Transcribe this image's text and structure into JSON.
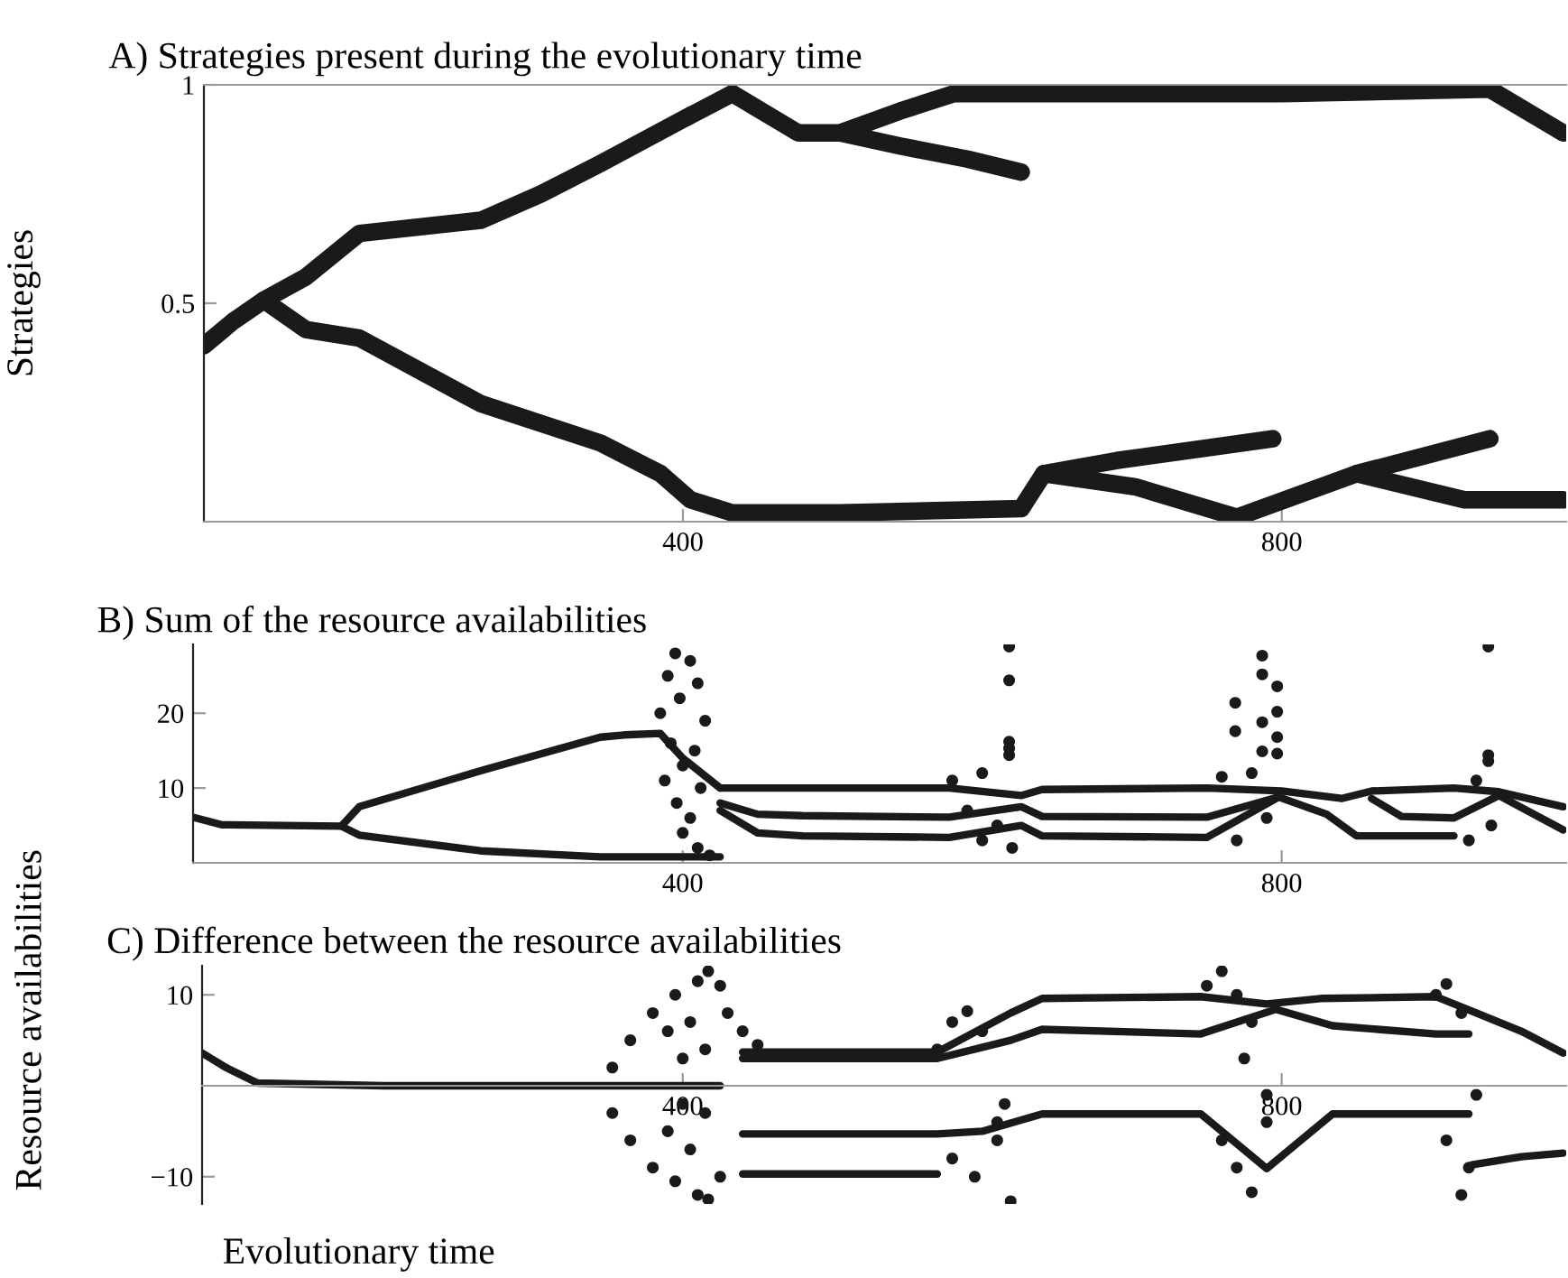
{
  "chart_data": [
    {
      "type": "line",
      "title": "A) Strategies present during the evolutionary time",
      "ylabel": "Strategies",
      "xlim": [
        80,
        990
      ],
      "ylim": [
        0,
        1
      ],
      "xticks": [
        400,
        800
      ],
      "yticks": [
        0.5,
        1
      ],
      "grid": false,
      "series": [
        {
          "color": "#1a1a1a",
          "x": [
            80,
            100,
            120,
            148,
            184,
            265,
            305,
            345,
            405,
            433,
            477,
            505,
            545,
            581,
            641,
            800,
            939,
            988
          ],
          "values": [
            0.403,
            0.46,
            0.507,
            0.56,
            0.66,
            0.69,
            0.75,
            0.82,
            0.93,
            0.98,
            0.89,
            0.89,
            0.94,
            0.98,
            0.98,
            0.98,
            0.99,
            0.89
          ]
        },
        {
          "color": "#1a1a1a",
          "x": [
            505,
            545,
            590,
            626
          ],
          "values": [
            0.89,
            0.86,
            0.83,
            0.8
          ]
        },
        {
          "color": "#1a1a1a",
          "x": [
            120,
            148,
            184,
            265,
            345,
            385,
            405,
            433,
            505,
            626,
            641,
            690,
            794
          ],
          "values": [
            0.507,
            0.44,
            0.42,
            0.27,
            0.18,
            0.11,
            0.05,
            0.02,
            0.02,
            0.03,
            0.11,
            0.14,
            0.19
          ]
        },
        {
          "color": "#1a1a1a",
          "x": [
            641,
            702,
            770,
            850,
            939
          ],
          "values": [
            0.11,
            0.08,
            0.01,
            0.11,
            0.19
          ]
        },
        {
          "color": "#1a1a1a",
          "x": [
            850,
            922,
            988
          ],
          "values": [
            0.11,
            0.05,
            0.05
          ]
        }
      ]
    },
    {
      "type": "line",
      "title": "B) Sum of the resource availabilities",
      "ylabel": "Resource availabilities",
      "xlim": [
        73,
        990
      ],
      "ylim": [
        0,
        29.2
      ],
      "xticks": [
        400,
        800
      ],
      "yticks": [
        10,
        20
      ],
      "grid": false,
      "series": [
        {
          "color": "#1a1a1a",
          "x": [
            73,
            92,
            172,
            184,
            265,
            345,
            361,
            385,
            400,
            425
          ],
          "values": [
            6.1,
            5.1,
            4.9,
            7.5,
            12.3,
            16.8,
            17.1,
            17.3,
            14,
            10
          ]
        },
        {
          "color": "#1a1a1a",
          "x": [
            172,
            184,
            265,
            345,
            425
          ],
          "values": [
            4.9,
            3.7,
            1.6,
            0.8,
            0.8
          ]
        },
        {
          "color": "#1a1a1a",
          "x": [
            425,
            450,
            480,
            578,
            626,
            640,
            750,
            800,
            840,
            860,
            915,
            945,
            988
          ],
          "values": [
            10,
            10,
            10,
            10,
            9,
            9.8,
            10,
            9.6,
            8.6,
            9.6,
            10,
            9.5,
            7.5
          ]
        },
        {
          "color": "#1a1a1a",
          "x": [
            425,
            450,
            480,
            578,
            626,
            640,
            750,
            798
          ],
          "values": [
            8,
            6.5,
            6.3,
            6.1,
            7.5,
            6.2,
            6.1,
            8.8
          ]
        },
        {
          "color": "#1a1a1a",
          "x": [
            425,
            450,
            480,
            578,
            626,
            640,
            750,
            798,
            830,
            850,
            915
          ],
          "values": [
            7,
            4,
            3.6,
            3.4,
            5,
            3.6,
            3.4,
            8.8,
            6.5,
            3.6,
            3.6
          ]
        },
        {
          "color": "#1a1a1a",
          "x": [
            860,
            880,
            915,
            945,
            988
          ],
          "values": [
            8.6,
            6.2,
            6,
            9,
            4.4
          ]
        },
        {
          "type": "scatter",
          "marker": "circle",
          "color": "#1a1a1a",
          "x": [
            395,
            405,
            390,
            410,
            398,
            385,
            415,
            392,
            408,
            400,
            388,
            412,
            396,
            405,
            400,
            410,
            418,
            618,
            618,
            618,
            618,
            618,
            580,
            600,
            590,
            610,
            620,
            600,
            787,
            787,
            797,
            769,
            797,
            787,
            769,
            797,
            787,
            797,
            760,
            780,
            790,
            770,
            938,
            938,
            938,
            930,
            940,
            925
          ],
          "values": [
            28,
            27,
            25,
            24,
            22,
            20,
            19,
            16,
            15,
            13,
            11,
            10,
            8,
            6,
            4,
            2,
            1,
            28.9,
            24.4,
            16.2,
            15.3,
            14.4,
            11,
            12,
            7,
            5,
            2,
            3,
            27.7,
            25.2,
            23.6,
            21.4,
            20.2,
            18.8,
            17.6,
            16.8,
            14.9,
            14.6,
            11.5,
            12,
            6,
            3,
            28.9,
            14.4,
            13.6,
            11,
            5,
            3
          ]
        }
      ]
    },
    {
      "type": "line",
      "title": "C) Difference between the resource availabilities",
      "xlabel": "Evolutionary time",
      "xlim": [
        79,
        990
      ],
      "ylim": [
        -13,
        13.2
      ],
      "xticks": [
        400,
        800
      ],
      "yticks": [
        10,
        {
          "value": -10,
          "label": "−10"
        }
      ],
      "grid": false,
      "series": [
        {
          "color": "#1a1a1a",
          "x": [
            79,
            95,
            116,
            200,
            300,
            385,
            425
          ],
          "values": [
            3.6,
            2,
            0.3,
            0,
            0,
            0,
            0
          ]
        },
        {
          "color": "#1a1a1a",
          "x": [
            440,
            460,
            570,
            619,
            640,
            746,
            790,
            826,
            903,
            930,
            960,
            988
          ],
          "values": [
            3.7,
            3.7,
            3.7,
            8,
            9.6,
            9.8,
            9,
            9.6,
            9.8,
            8,
            6,
            3.6
          ]
        },
        {
          "color": "#1a1a1a",
          "x": [
            440,
            460,
            570,
            619,
            640,
            746,
            796,
            834,
            903,
            925
          ],
          "values": [
            3,
            3,
            3,
            5,
            6.2,
            5.7,
            8.4,
            6.6,
            5.7,
            5.7
          ]
        },
        {
          "color": "#1a1a1a",
          "x": [
            440,
            470,
            570,
            600,
            640,
            746,
            790,
            834,
            903,
            925
          ],
          "values": [
            -5.3,
            -5.3,
            -5.3,
            -5,
            -3.1,
            -3.1,
            -9.1,
            -3.1,
            -3.1,
            -3.1
          ]
        },
        {
          "color": "#1a1a1a",
          "x": [
            440,
            470,
            570
          ],
          "values": [
            -9.7,
            -9.7,
            -9.7
          ]
        },
        {
          "color": "#1a1a1a",
          "x": [
            927,
            960,
            988
          ],
          "values": [
            -8.7,
            -7.8,
            -7.4
          ]
        },
        {
          "type": "scatter",
          "marker": "circle",
          "color": "#1a1a1a",
          "x": [
            353,
            365,
            380,
            395,
            410,
            417,
            425,
            430,
            440,
            450,
            353,
            365,
            380,
            395,
            410,
            417,
            425,
            390,
            405,
            400,
            415,
            390,
            405,
            415,
            400,
            570,
            580,
            590,
            600,
            610,
            619,
            580,
            595,
            610,
            615,
            750,
            760,
            770,
            780,
            790,
            760,
            770,
            780,
            790,
            775,
            903,
            910,
            920,
            930,
            910,
            920,
            925
          ],
          "values": [
            2,
            5,
            8,
            10,
            11.5,
            12.6,
            11,
            8,
            6,
            4.5,
            -3,
            -6,
            -9,
            -10.5,
            -12,
            -12.5,
            -10,
            6,
            7,
            3,
            4,
            -5,
            -7,
            -3,
            -2,
            4,
            7,
            8.2,
            6,
            -4,
            -12.7,
            -8,
            -10,
            -6,
            -2,
            11,
            12.6,
            10,
            7,
            -1,
            -6,
            -9,
            -11.7,
            -4,
            3,
            10,
            11.2,
            8,
            -1,
            -6,
            -12,
            -9
          ]
        }
      ]
    }
  ]
}
